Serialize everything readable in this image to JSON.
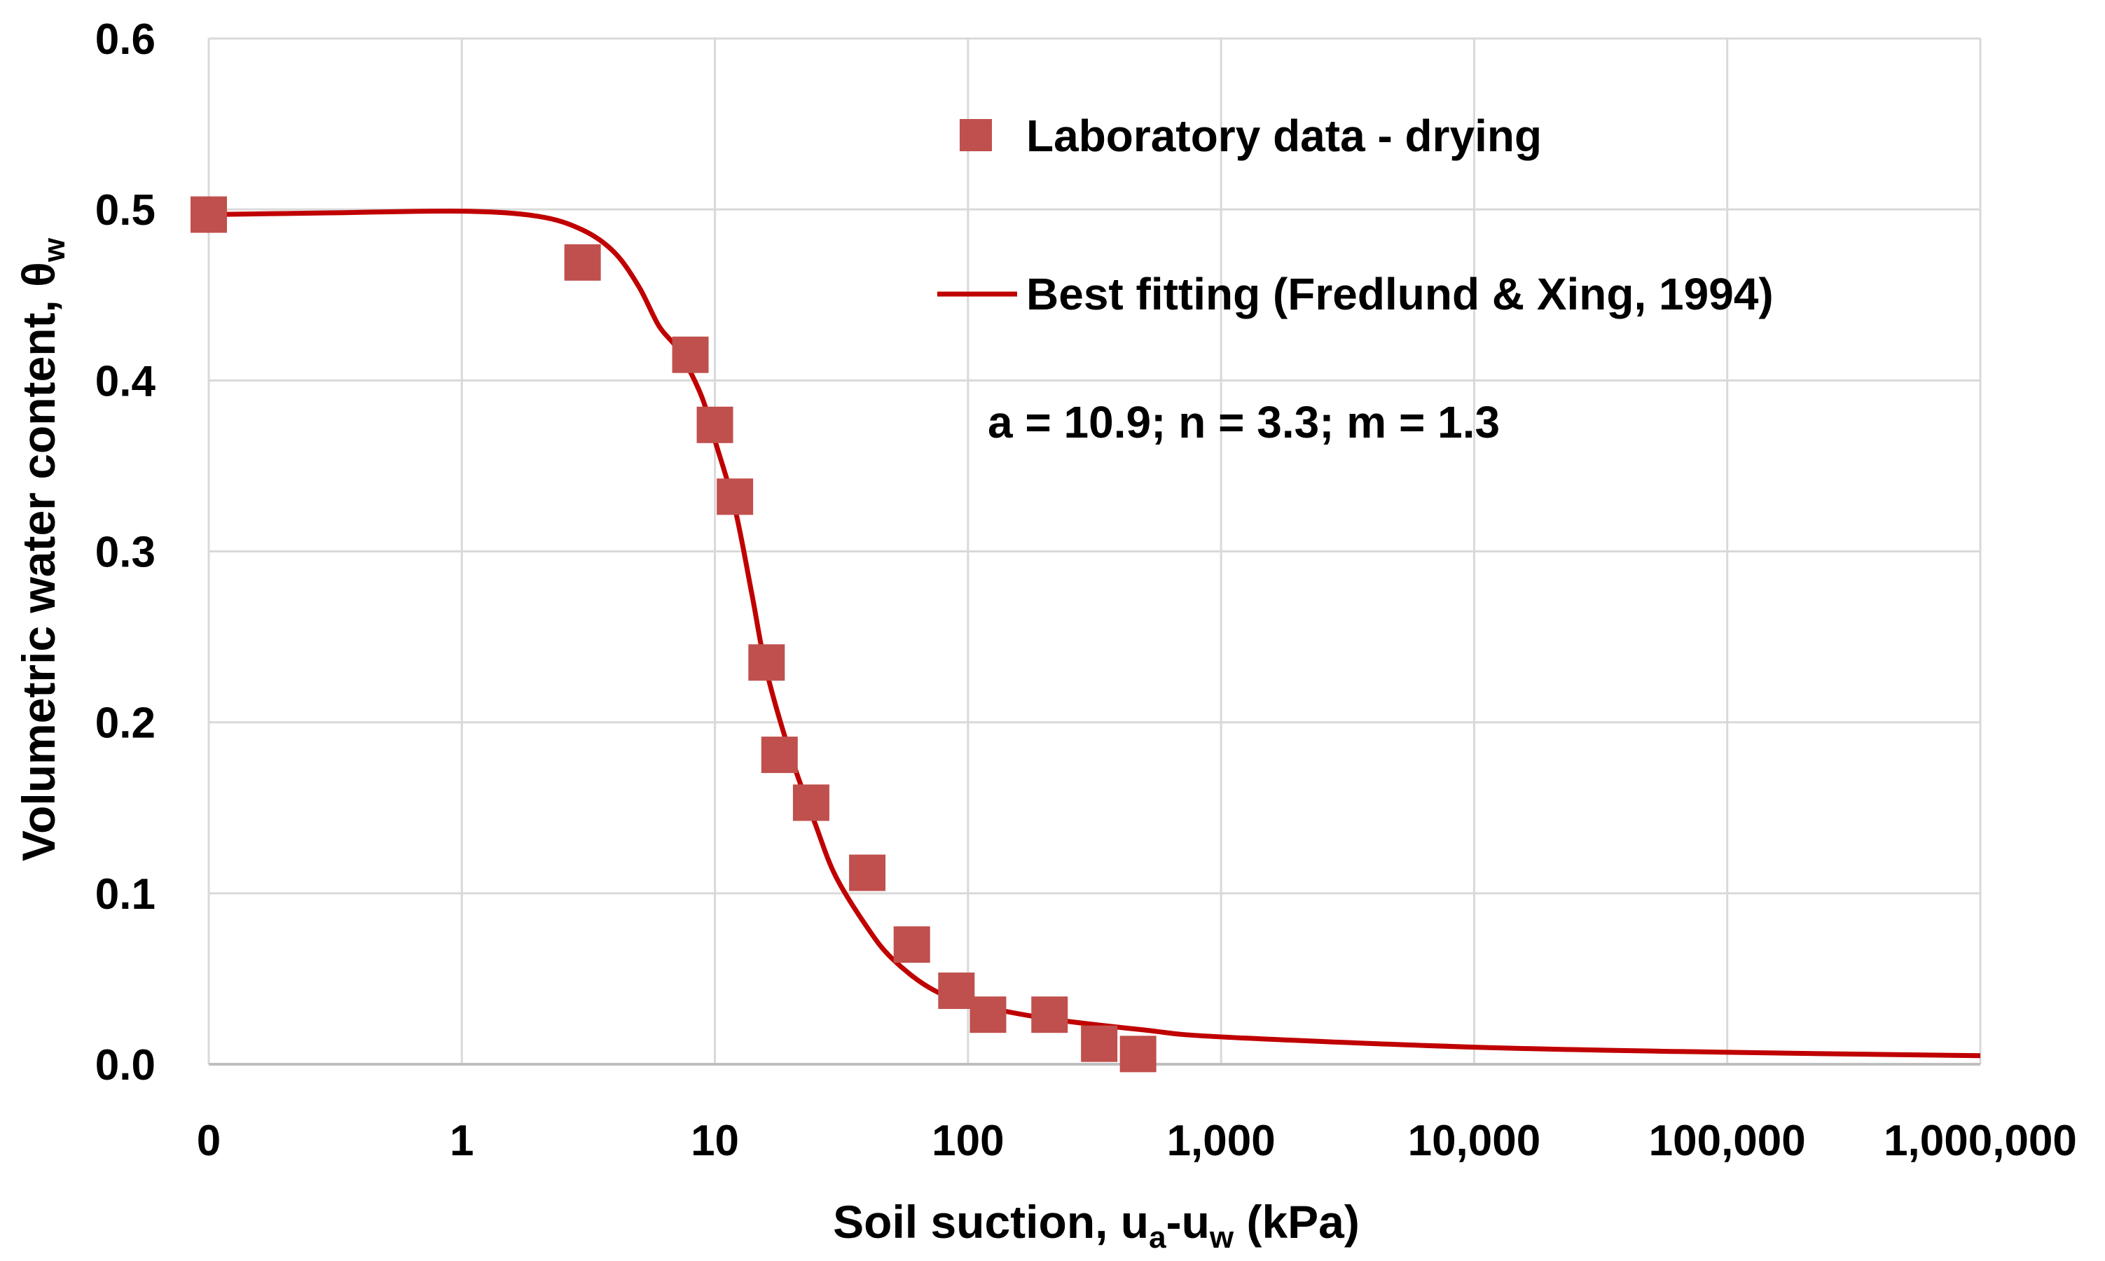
{
  "chart_data": {
    "type": "scatter",
    "title": "",
    "xlabel": {
      "main": "Soil suction, u",
      "sub1": "a",
      "mid": "-u",
      "sub2": "w",
      "tail": " (kPa)"
    },
    "ylabel": {
      "main": "Volumetric water content, θ",
      "sub": "w"
    },
    "xscale": "log",
    "xlim": [
      0.1,
      1000000
    ],
    "ylim": [
      0.0,
      0.6
    ],
    "x_ticks": [
      0.1,
      1,
      10,
      100,
      1000,
      10000,
      100000,
      1000000
    ],
    "x_tick_labels": [
      "0",
      "1",
      "10",
      "100",
      "1,000",
      "10,000",
      "100,000",
      "1,000,000"
    ],
    "y_ticks": [
      0.0,
      0.1,
      0.2,
      0.3,
      0.4,
      0.5,
      0.6
    ],
    "y_tick_labels": [
      "0.0",
      "0.1",
      "0.2",
      "0.3",
      "0.4",
      "0.5",
      "0.6"
    ],
    "grid": true,
    "legend_position": "top-right",
    "colors": {
      "marker": "#c0504d",
      "line": "#c00000"
    },
    "series": [
      {
        "name": "Laboratory data - drying",
        "kind": "marker",
        "points": [
          {
            "x": 0.1,
            "y": 0.497
          },
          {
            "x": 3.0,
            "y": 0.469
          },
          {
            "x": 8.0,
            "y": 0.415
          },
          {
            "x": 10.0,
            "y": 0.374
          },
          {
            "x": 12.0,
            "y": 0.332
          },
          {
            "x": 16.0,
            "y": 0.235
          },
          {
            "x": 18.0,
            "y": 0.181
          },
          {
            "x": 24.0,
            "y": 0.153
          },
          {
            "x": 40.0,
            "y": 0.112
          },
          {
            "x": 60.0,
            "y": 0.07
          },
          {
            "x": 90.0,
            "y": 0.043
          },
          {
            "x": 120.0,
            "y": 0.029
          },
          {
            "x": 210.0,
            "y": 0.029
          },
          {
            "x": 330.0,
            "y": 0.012
          },
          {
            "x": 470.0,
            "y": 0.006
          }
        ]
      },
      {
        "name": "Best fitting (Fredlund & Xing, 1994)",
        "kind": "line",
        "points": [
          {
            "x": 0.1,
            "y": 0.497
          },
          {
            "x": 0.3,
            "y": 0.498
          },
          {
            "x": 1,
            "y": 0.499
          },
          {
            "x": 2,
            "y": 0.496
          },
          {
            "x": 3,
            "y": 0.488
          },
          {
            "x": 4,
            "y": 0.475
          },
          {
            "x": 5,
            "y": 0.455
          },
          {
            "x": 6,
            "y": 0.432
          },
          {
            "x": 7,
            "y": 0.42
          },
          {
            "x": 8,
            "y": 0.405
          },
          {
            "x": 9,
            "y": 0.388
          },
          {
            "x": 10,
            "y": 0.365
          },
          {
            "x": 12,
            "y": 0.325
          },
          {
            "x": 14,
            "y": 0.275
          },
          {
            "x": 16,
            "y": 0.23
          },
          {
            "x": 20,
            "y": 0.18
          },
          {
            "x": 25,
            "y": 0.14
          },
          {
            "x": 30,
            "y": 0.11
          },
          {
            "x": 40,
            "y": 0.08
          },
          {
            "x": 50,
            "y": 0.062
          },
          {
            "x": 70,
            "y": 0.045
          },
          {
            "x": 100,
            "y": 0.036
          },
          {
            "x": 200,
            "y": 0.027
          },
          {
            "x": 500,
            "y": 0.02
          },
          {
            "x": 1000,
            "y": 0.016
          },
          {
            "x": 10000,
            "y": 0.01
          },
          {
            "x": 100000,
            "y": 0.007
          },
          {
            "x": 1000000,
            "y": 0.005
          }
        ]
      }
    ],
    "annotations": [
      {
        "text": "a = 10.9; n = 3.3; m = 1.3"
      }
    ]
  }
}
